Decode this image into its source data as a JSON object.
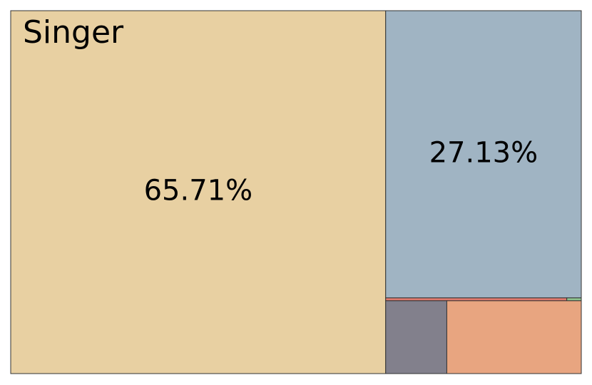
{
  "chart_data": {
    "type": "treemap",
    "title": "Singer",
    "values": [
      65.71,
      27.13,
      0.25,
      0.02,
      2.15,
      4.73
    ],
    "value_labels": [
      "65.71%",
      "27.13%",
      null,
      null,
      null,
      null
    ],
    "colors": [
      "#e8d0a2",
      "#a0b4c3",
      "#e07a6e",
      "#8fc48f",
      "#82808c",
      "#e8a580"
    ]
  }
}
